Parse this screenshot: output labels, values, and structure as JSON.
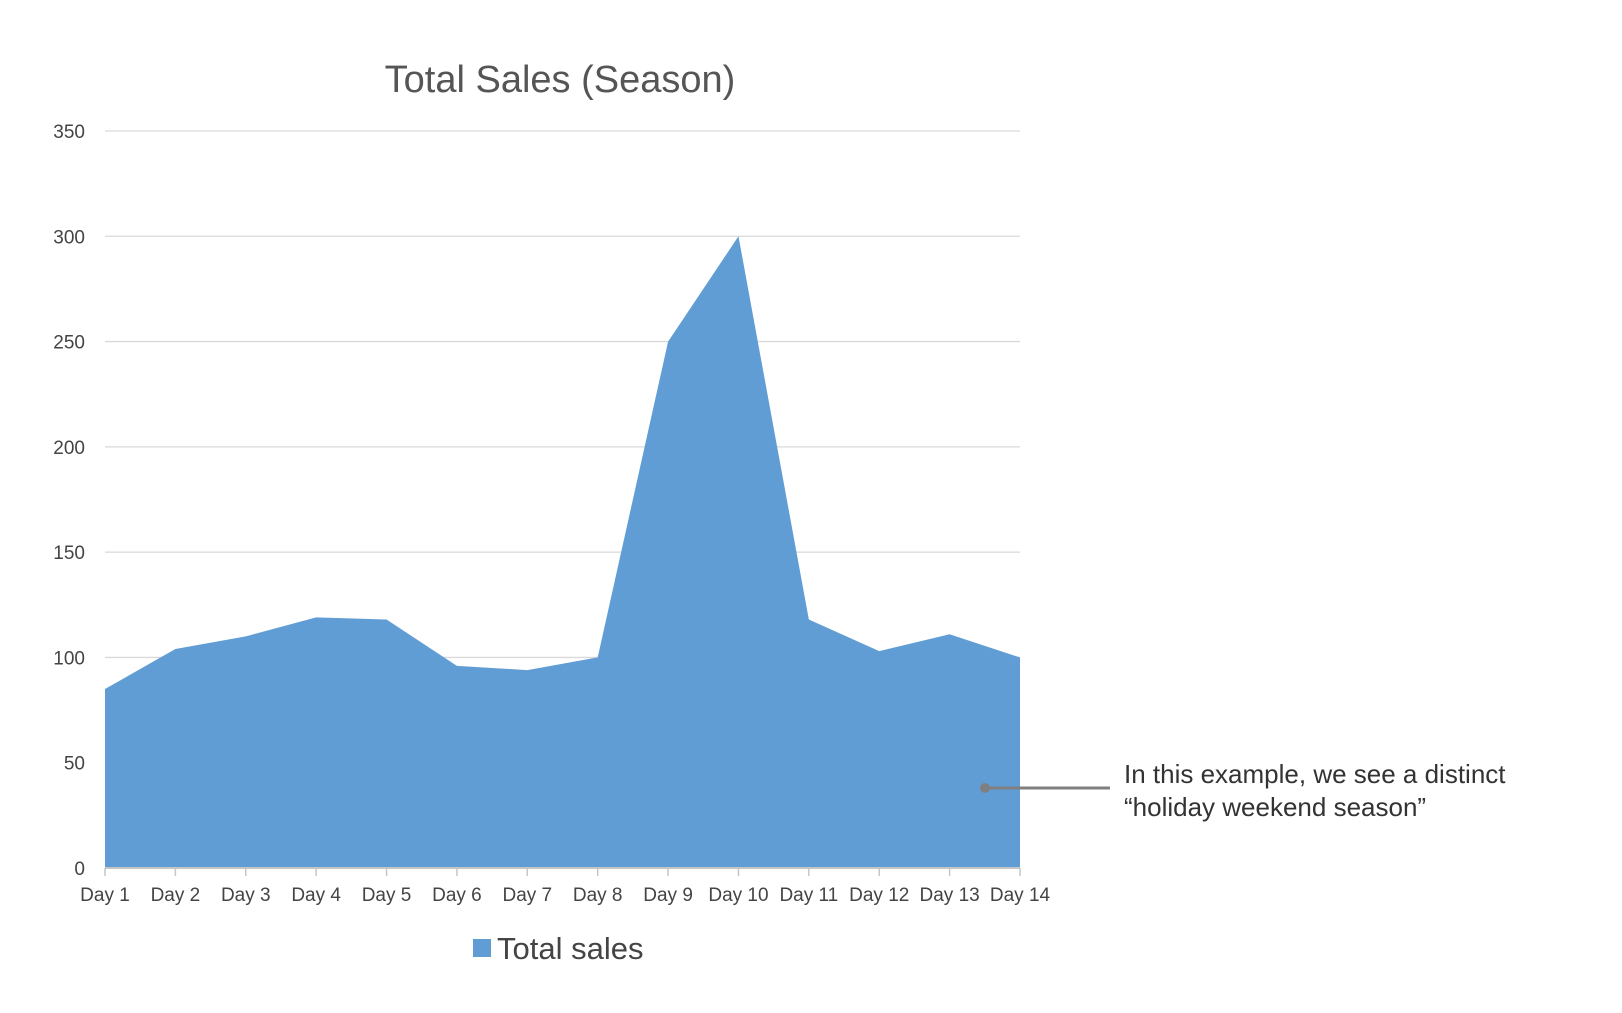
{
  "chart_data": {
    "type": "area",
    "title": "Total Sales (Season)",
    "categories": [
      "Day 1",
      "Day 2",
      "Day 3",
      "Day 4",
      "Day 5",
      "Day 6",
      "Day 7",
      "Day 8",
      "Day 9",
      "Day 10",
      "Day 11",
      "Day 12",
      "Day 13",
      "Day 14"
    ],
    "series": [
      {
        "name": "Total sales",
        "values": [
          85,
          104,
          110,
          119,
          118,
          96,
          94,
          100,
          250,
          300,
          118,
          103,
          111,
          100
        ]
      }
    ],
    "ylim": [
      0,
      350
    ],
    "yticks": [
      0,
      50,
      100,
      150,
      200,
      250,
      300,
      350
    ],
    "grid": true,
    "legend": "bottom",
    "annotation": {
      "lines": [
        "In this example, we see a distinct",
        "“holiday weekend season”"
      ],
      "target_category": "Day 14",
      "target_value": 38
    },
    "colors": {
      "area": "#619dd5",
      "grid": "#d9d9d9",
      "axis": "#c6c6c6",
      "annotation_line": "#7f7f7f"
    }
  }
}
